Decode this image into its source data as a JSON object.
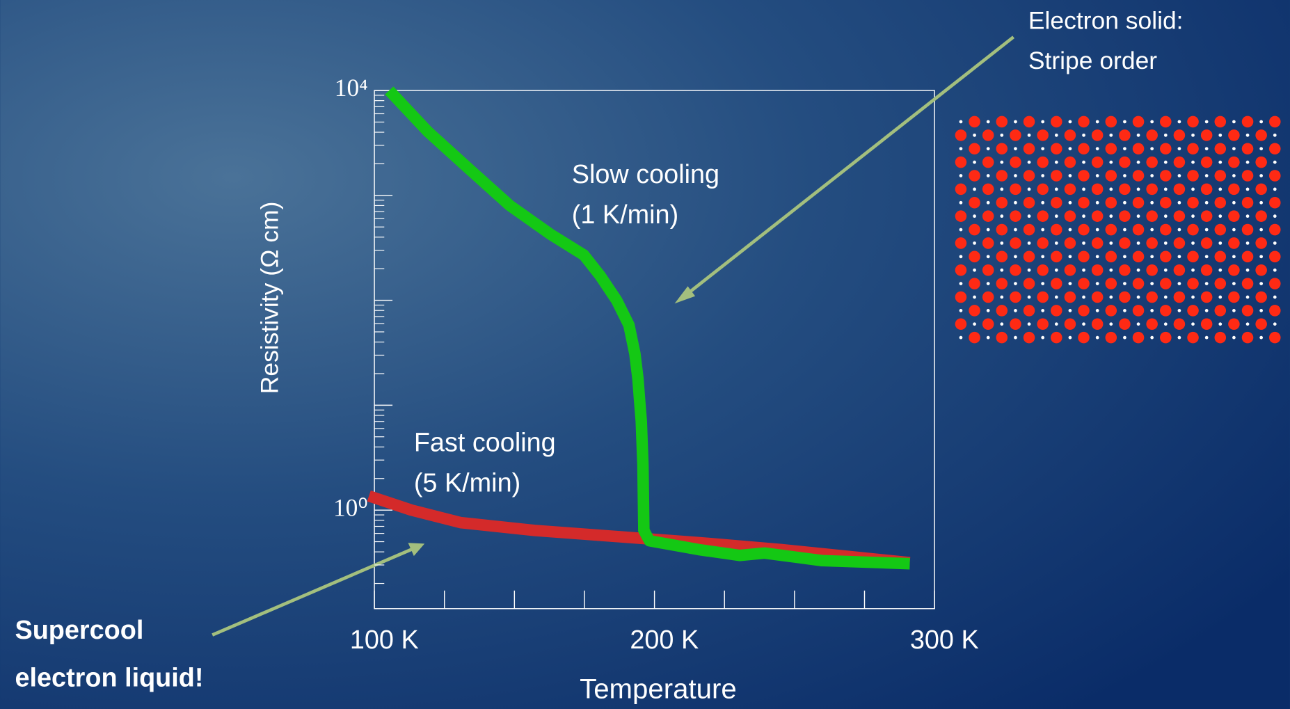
{
  "chart_data": {
    "type": "line",
    "xlabel": "Temperature",
    "ylabel": "Resistivity (Ω cm)",
    "log_y": true,
    "xlim": [
      100,
      300
    ],
    "ylim": [
      0.115,
      10000
    ],
    "xticks": [
      {
        "value": 100,
        "label": "100 K"
      },
      {
        "value": 125,
        "label": null
      },
      {
        "value": 150,
        "label": null
      },
      {
        "value": 175,
        "label": null
      },
      {
        "value": 200,
        "label": "200 K"
      },
      {
        "value": 225,
        "label": null
      },
      {
        "value": 250,
        "label": null
      },
      {
        "value": 275,
        "label": null
      },
      {
        "value": 300,
        "label": "300 K"
      }
    ],
    "yticks": [
      {
        "value": 1,
        "label": "10⁰"
      },
      {
        "value": 10,
        "label": null
      },
      {
        "value": 100,
        "label": null
      },
      {
        "value": 1000,
        "label": null
      },
      {
        "value": 10000,
        "label": "10⁴"
      }
    ],
    "series": [
      {
        "color": "#d42a2a",
        "x": [
          100,
          113.2,
          130.8,
          157.2,
          186.5,
          215.8,
          245.2,
          274.5,
          289.1
        ],
        "values": [
          1.31,
          1.0,
          0.76,
          0.64,
          0.56,
          0.49,
          0.42,
          0.35,
          0.32
        ]
      },
      {
        "color": "#14c814",
        "x": [
          106.7,
          119.1,
          133.7,
          148.4,
          163.0,
          174.8,
          180.6,
          186.5,
          190.9,
          193.0,
          194.1,
          194.7,
          195.3,
          195.9,
          196.2,
          198.2,
          215.8,
          230.5,
          239.3,
          259.8,
          289.1
        ],
        "values": [
          9120,
          4055,
          1800,
          798,
          424,
          270,
          172,
          100,
          58,
          31,
          18,
          11,
          7.0,
          2.7,
          0.64,
          0.51,
          0.42,
          0.37,
          0.39,
          0.33,
          0.31
        ]
      }
    ],
    "annotations": [
      "Slow cooling",
      "(1 K/min)",
      "Fast cooling",
      "(5 K/min)",
      "Electron solid:",
      "Stripe order",
      "Supercool",
      "electron liquid!"
    ]
  }
}
